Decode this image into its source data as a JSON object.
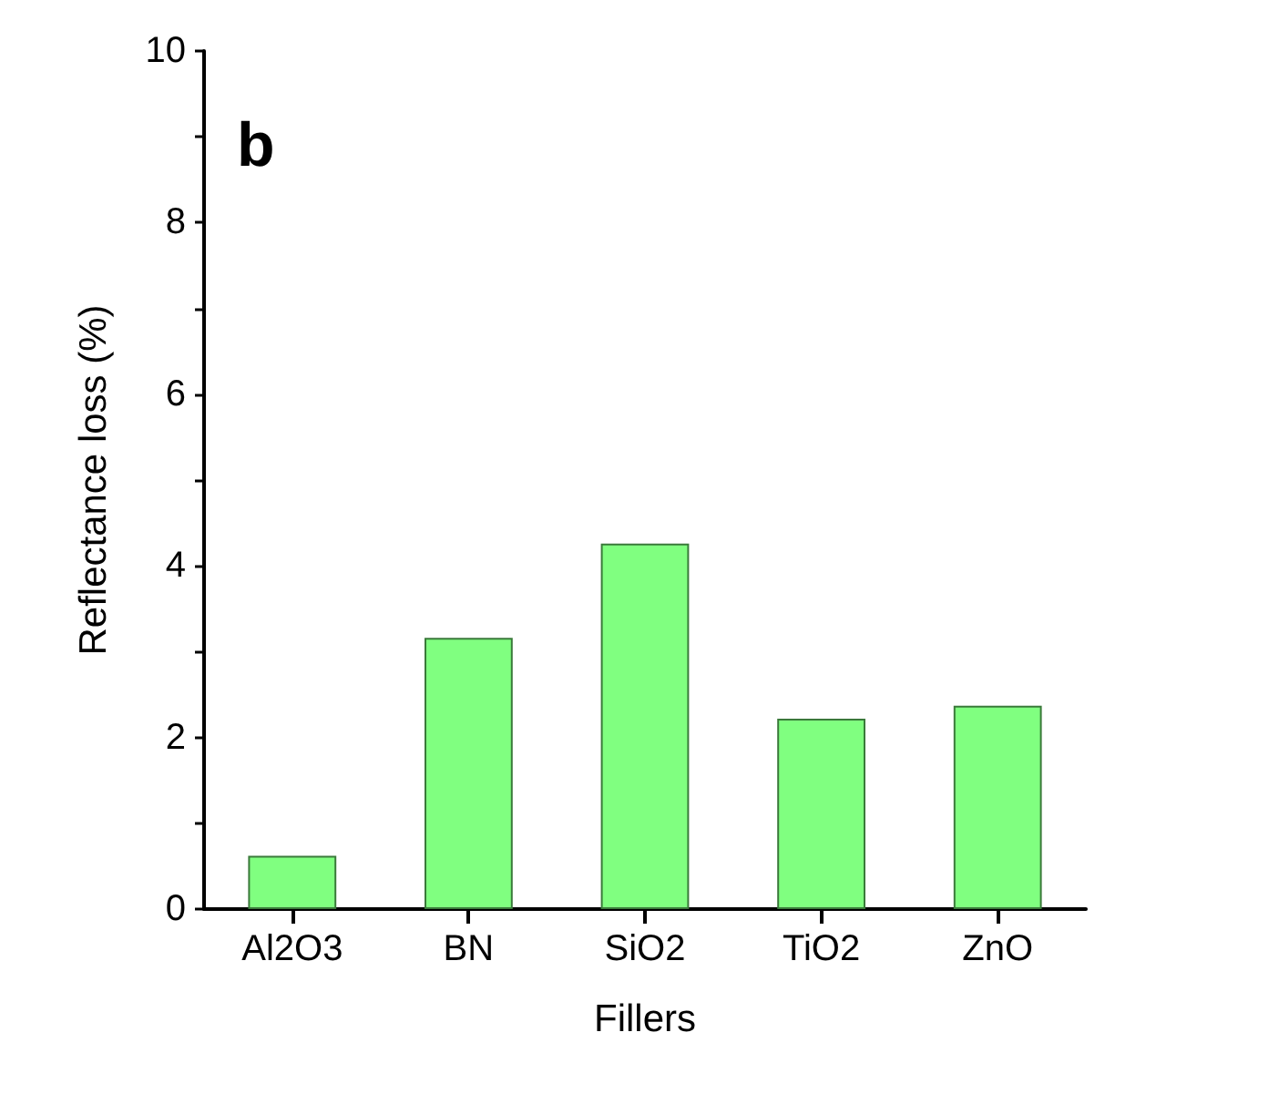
{
  "chart_data": {
    "type": "bar",
    "xlabel": "Fillers",
    "ylabel": "Reflectance loss (%)",
    "annotations": [
      "b"
    ],
    "categories": [
      "Al2O3",
      "BN",
      "SiO2",
      "TiO2",
      "ZnO"
    ],
    "values": [
      0.62,
      3.16,
      4.26,
      2.22,
      2.37
    ],
    "color": "#80ff80",
    "ylim": [
      0,
      10
    ],
    "yticks": [
      0,
      2,
      4,
      6,
      8,
      10
    ],
    "grid": false
  }
}
